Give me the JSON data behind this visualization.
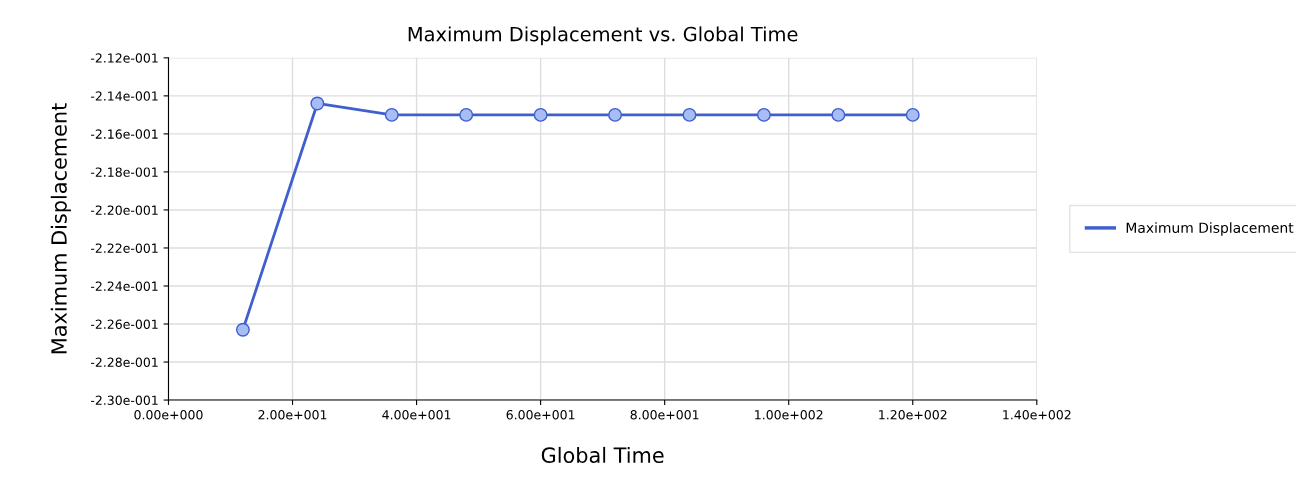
{
  "chart_data": {
    "type": "line",
    "title": "Maximum Displacement vs. Global Time",
    "xlabel": "Global Time",
    "ylabel": "Maximum Displacement",
    "x": [
      12,
      24,
      36,
      48,
      60,
      72,
      84,
      96,
      108,
      120
    ],
    "series": [
      {
        "name": "Maximum Displacement",
        "color": "#3f5fcf",
        "values": [
          -0.2263,
          -0.2144,
          -0.215,
          -0.215,
          -0.215,
          -0.215,
          -0.215,
          -0.215,
          -0.215,
          -0.215
        ]
      }
    ],
    "xlim": [
      0,
      140
    ],
    "xticks": [
      {
        "value": 0,
        "label": "0.00e+000"
      },
      {
        "value": 20,
        "label": "2.00e+001"
      },
      {
        "value": 40,
        "label": "4.00e+001"
      },
      {
        "value": 60,
        "label": "6.00e+001"
      },
      {
        "value": 80,
        "label": "8.00e+001"
      },
      {
        "value": 100,
        "label": "1.00e+002"
      },
      {
        "value": 120,
        "label": "1.20e+002"
      },
      {
        "value": 140,
        "label": "1.40e+002"
      }
    ],
    "ylim": [
      -0.23,
      -0.212
    ],
    "yticks": [
      {
        "value": -0.23,
        "label": "-2.30e-001"
      },
      {
        "value": -0.228,
        "label": "-2.28e-001"
      },
      {
        "value": -0.226,
        "label": "-2.26e-001"
      },
      {
        "value": -0.224,
        "label": "-2.24e-001"
      },
      {
        "value": -0.222,
        "label": "-2.22e-001"
      },
      {
        "value": -0.22,
        "label": "-2.20e-001"
      },
      {
        "value": -0.218,
        "label": "-2.18e-001"
      },
      {
        "value": -0.216,
        "label": "-2.16e-001"
      },
      {
        "value": -0.214,
        "label": "-2.14e-001"
      },
      {
        "value": -0.212,
        "label": "-2.12e-001"
      }
    ],
    "grid": true,
    "legend": "right",
    "marker": "circle",
    "line_style": "solid"
  }
}
